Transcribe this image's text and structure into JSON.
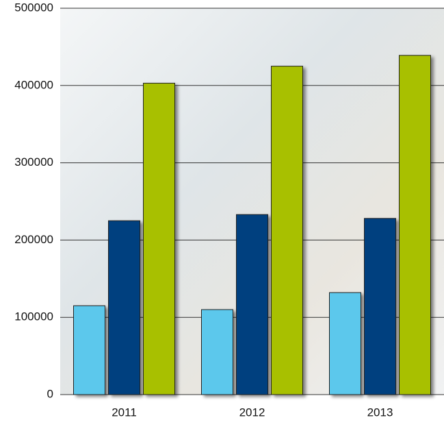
{
  "chart_data": {
    "type": "bar",
    "categories": [
      "2011",
      "2012",
      "2013"
    ],
    "series": [
      {
        "color": "#5bc8ec",
        "values": [
          115000,
          110000,
          132000
        ]
      },
      {
        "color": "#003f7f",
        "values": [
          225000,
          233000,
          228000
        ]
      },
      {
        "color": "#a8c000",
        "values": [
          403000,
          425000,
          439000
        ]
      }
    ],
    "ylim": [
      0,
      500000
    ],
    "yticks": [
      0,
      100000,
      200000,
      300000,
      400000,
      500000
    ],
    "grid": true
  }
}
